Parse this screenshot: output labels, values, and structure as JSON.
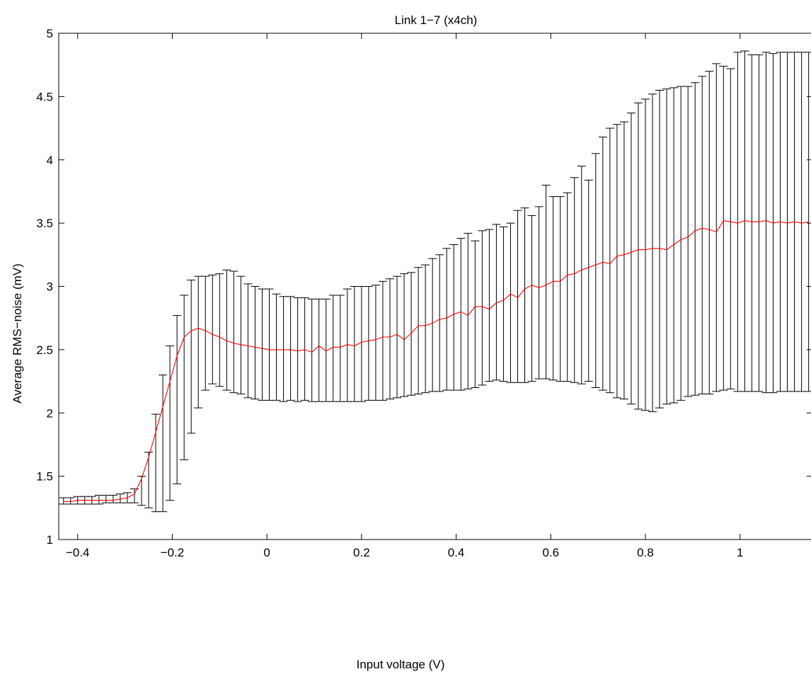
{
  "chart_data": {
    "type": "line",
    "title": "Link 1−7 (x4ch)",
    "xlabel": "Input voltage (V)",
    "ylabel": "Average RMS−noise (mV)",
    "xlim": [
      -0.44,
      1.15
    ],
    "ylim": [
      1,
      5
    ],
    "xticks": [
      -0.4,
      -0.2,
      0,
      0.2,
      0.4,
      0.6,
      0.8,
      1
    ],
    "xtick_labels": [
      "−0.4",
      "−0.2",
      "0",
      "0.2",
      "0.4",
      "0.6",
      "0.8",
      "1"
    ],
    "yticks": [
      1,
      1.5,
      2,
      2.5,
      3,
      3.5,
      4,
      4.5,
      5
    ],
    "ytick_labels": [
      "1",
      "1.5",
      "2",
      "2.5",
      "3",
      "3.5",
      "4",
      "4.5",
      "5"
    ],
    "grid": false,
    "colors": {
      "mean_line": "#ff0000",
      "error_bars": "#000000",
      "axes": "#000000"
    },
    "series": [
      {
        "x": [
          -0.43,
          -0.415,
          -0.4,
          -0.385,
          -0.37,
          -0.355,
          -0.34,
          -0.325,
          -0.31,
          -0.295,
          -0.28,
          -0.265,
          -0.25,
          -0.235,
          -0.22,
          -0.205,
          -0.19,
          -0.175,
          -0.16,
          -0.145,
          -0.13,
          -0.115,
          -0.1,
          -0.085,
          -0.07,
          -0.055,
          -0.04,
          -0.025,
          -0.01,
          0.005,
          0.02,
          0.035,
          0.05,
          0.065,
          0.08,
          0.095,
          0.11,
          0.125,
          0.14,
          0.155,
          0.17,
          0.185,
          0.2,
          0.215,
          0.23,
          0.245,
          0.26,
          0.275,
          0.29,
          0.305,
          0.32,
          0.335,
          0.35,
          0.365,
          0.38,
          0.395,
          0.41,
          0.425,
          0.44,
          0.455,
          0.47,
          0.485,
          0.5,
          0.515,
          0.53,
          0.545,
          0.56,
          0.575,
          0.59,
          0.605,
          0.62,
          0.635,
          0.65,
          0.665,
          0.68,
          0.695,
          0.71,
          0.725,
          0.74,
          0.755,
          0.77,
          0.785,
          0.8,
          0.815,
          0.83,
          0.845,
          0.86,
          0.875,
          0.89,
          0.905,
          0.92,
          0.935,
          0.95,
          0.965,
          0.98,
          0.995,
          1.01,
          1.025,
          1.04,
          1.055,
          1.07,
          1.085,
          1.1,
          1.115,
          1.13,
          1.145
        ],
        "y": [
          1.3,
          1.3,
          1.31,
          1.31,
          1.31,
          1.31,
          1.31,
          1.31,
          1.32,
          1.33,
          1.36,
          1.48,
          1.65,
          1.85,
          2.05,
          2.25,
          2.45,
          2.6,
          2.65,
          2.67,
          2.65,
          2.62,
          2.6,
          2.57,
          2.55,
          2.54,
          2.53,
          2.52,
          2.51,
          2.5,
          2.5,
          2.5,
          2.5,
          2.49,
          2.5,
          2.48,
          2.53,
          2.49,
          2.52,
          2.52,
          2.54,
          2.53,
          2.56,
          2.57,
          2.58,
          2.6,
          2.6,
          2.62,
          2.58,
          2.63,
          2.69,
          2.69,
          2.71,
          2.74,
          2.75,
          2.78,
          2.8,
          2.77,
          2.84,
          2.84,
          2.82,
          2.87,
          2.89,
          2.94,
          2.91,
          2.98,
          3.01,
          2.99,
          3.01,
          3.04,
          3.04,
          3.09,
          3.1,
          3.13,
          3.15,
          3.17,
          3.19,
          3.18,
          3.24,
          3.25,
          3.27,
          3.29,
          3.29,
          3.3,
          3.3,
          3.29,
          3.33,
          3.37,
          3.39,
          3.44,
          3.46,
          3.45,
          3.43,
          3.52,
          3.51,
          3.5,
          3.52,
          3.51,
          3.51,
          3.52,
          3.5,
          3.51,
          3.5,
          3.51,
          3.5,
          3.51
        ],
        "y_lower": [
          1.28,
          1.28,
          1.28,
          1.28,
          1.28,
          1.28,
          1.29,
          1.29,
          1.29,
          1.29,
          1.29,
          1.27,
          1.25,
          1.22,
          1.22,
          1.31,
          1.44,
          1.63,
          1.84,
          2.04,
          2.18,
          2.23,
          2.21,
          2.18,
          2.16,
          2.15,
          2.12,
          2.11,
          2.1,
          2.1,
          2.1,
          2.09,
          2.1,
          2.09,
          2.1,
          2.09,
          2.09,
          2.09,
          2.09,
          2.09,
          2.09,
          2.09,
          2.09,
          2.1,
          2.1,
          2.1,
          2.11,
          2.12,
          2.13,
          2.14,
          2.15,
          2.16,
          2.17,
          2.17,
          2.18,
          2.18,
          2.18,
          2.19,
          2.2,
          2.22,
          2.25,
          2.26,
          2.25,
          2.24,
          2.24,
          2.24,
          2.25,
          2.27,
          2.27,
          2.26,
          2.25,
          2.25,
          2.24,
          2.23,
          2.25,
          2.2,
          2.18,
          2.16,
          2.12,
          2.11,
          2.07,
          2.03,
          2.02,
          2.01,
          2.04,
          2.07,
          2.08,
          2.1,
          2.13,
          2.14,
          2.15,
          2.15,
          2.17,
          2.18,
          2.19,
          2.17,
          2.17,
          2.17,
          2.17,
          2.16,
          2.16,
          2.17,
          2.17,
          2.17,
          2.17,
          2.17
        ],
        "y_upper": [
          1.33,
          1.33,
          1.34,
          1.34,
          1.34,
          1.35,
          1.35,
          1.35,
          1.36,
          1.37,
          1.4,
          1.5,
          1.69,
          1.99,
          2.3,
          2.53,
          2.77,
          2.93,
          3.05,
          3.08,
          3.08,
          3.09,
          3.1,
          3.13,
          3.12,
          3.08,
          3.02,
          3.0,
          2.98,
          2.98,
          2.94,
          2.92,
          2.92,
          2.91,
          2.91,
          2.9,
          2.9,
          2.9,
          2.93,
          2.93,
          2.98,
          3.0,
          3.0,
          3.0,
          3.01,
          3.04,
          3.06,
          3.08,
          3.1,
          3.11,
          3.15,
          3.17,
          3.22,
          3.25,
          3.3,
          3.33,
          3.38,
          3.42,
          3.36,
          3.44,
          3.45,
          3.49,
          3.47,
          3.5,
          3.6,
          3.62,
          3.56,
          3.63,
          3.8,
          3.71,
          3.71,
          3.74,
          3.86,
          3.95,
          3.84,
          4.05,
          4.18,
          4.25,
          4.28,
          4.3,
          4.37,
          4.45,
          4.48,
          4.52,
          4.55,
          4.56,
          4.57,
          4.58,
          4.58,
          4.61,
          4.66,
          4.7,
          4.76,
          4.74,
          4.72,
          4.85,
          4.86,
          4.83,
          4.83,
          4.85,
          4.84,
          4.85,
          4.85,
          4.85,
          4.85,
          4.85
        ]
      }
    ]
  }
}
